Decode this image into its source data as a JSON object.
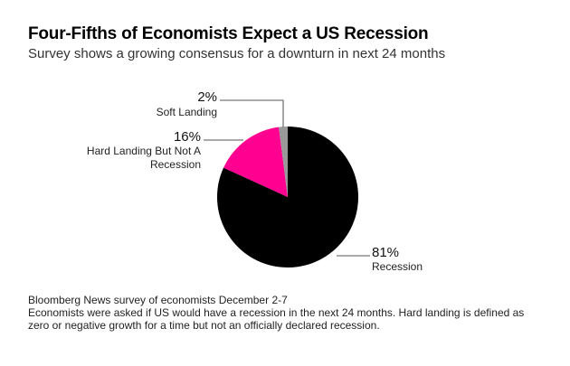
{
  "chart_data": {
    "type": "pie",
    "title": "Four-Fifths of Economists Expect a US Recession",
    "subtitle": "Survey shows a growing consensus for a downturn in next 24 months",
    "slices": [
      {
        "label": "Recession",
        "value": 81,
        "value_label": "81%",
        "color": "#000000"
      },
      {
        "label": "Hard Landing But Not A Recession",
        "label_lines": [
          "Hard Landing But Not A",
          "Recession"
        ],
        "value": 16,
        "value_label": "16%",
        "color": "#ff0090"
      },
      {
        "label": "Soft Landing",
        "value": 2,
        "value_label": "2%",
        "color": "#999999"
      }
    ],
    "start_angle": "12 o'clock",
    "direction": "clockwise",
    "legend": "none (direct labels with leader lines)"
  },
  "footnote": {
    "line1": "Bloomberg News survey of economists December 2-7",
    "line2": "Economists were asked if US would have a recession in the next 24 months. Hard landing is defined as",
    "line3": "zero or negative growth for a time but not an officially declared recession."
  }
}
